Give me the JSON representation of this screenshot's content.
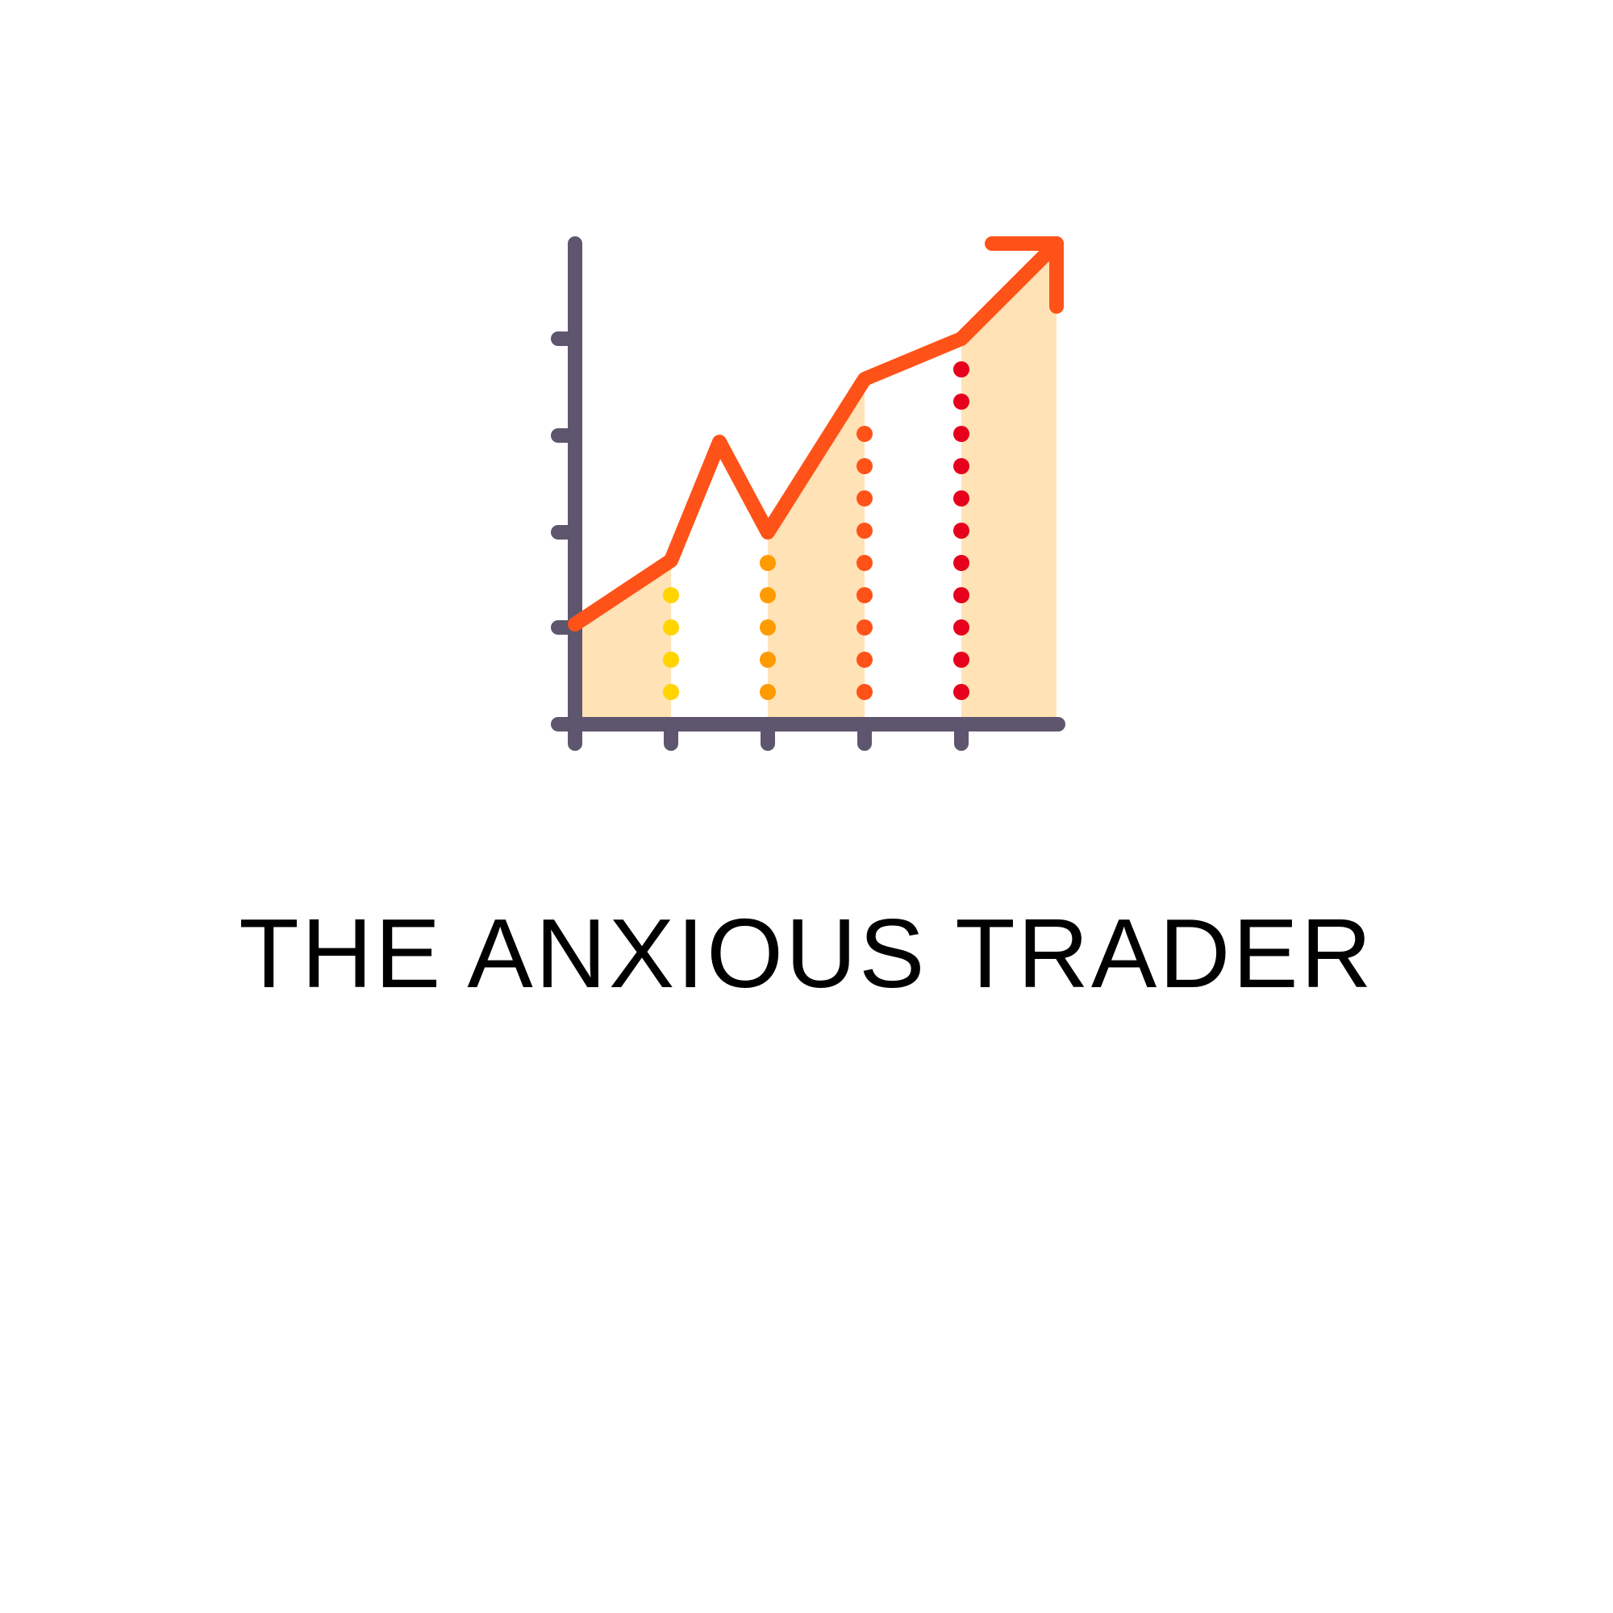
{
  "brand": {
    "name": "THE ANXIOUS TRADER",
    "logo_icon": "rising-line-chart-icon"
  },
  "colors": {
    "background": "#ffffff",
    "text": "#000000",
    "axis": "#5e566e",
    "line": "#ff5219",
    "fill": "#ffe2b5",
    "dots": [
      "#ffd400",
      "#ff9b00",
      "#ff5219",
      "#e6001d"
    ]
  }
}
